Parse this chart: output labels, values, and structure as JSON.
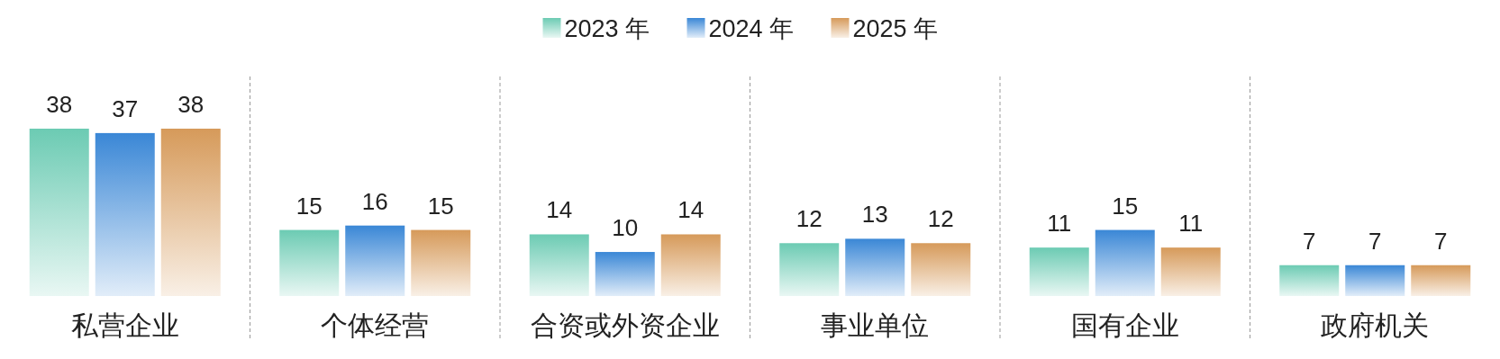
{
  "chart_data": {
    "type": "bar",
    "categories": [
      "私营企业",
      "个体经营",
      "合资或外资企业",
      "事业单位",
      "国有企业",
      "政府机关"
    ],
    "series": [
      {
        "name": "2023 年",
        "color": "#6ccbb3",
        "values": [
          38,
          15,
          14,
          12,
          11,
          7
        ]
      },
      {
        "name": "2024 年",
        "color": "#3a87d6",
        "values": [
          37,
          16,
          10,
          13,
          15,
          7
        ]
      },
      {
        "name": "2025 年",
        "color": "#d69a5a",
        "values": [
          38,
          15,
          14,
          12,
          11,
          7
        ]
      }
    ],
    "data_labels": true,
    "legend": "top",
    "grid": "x"
  }
}
